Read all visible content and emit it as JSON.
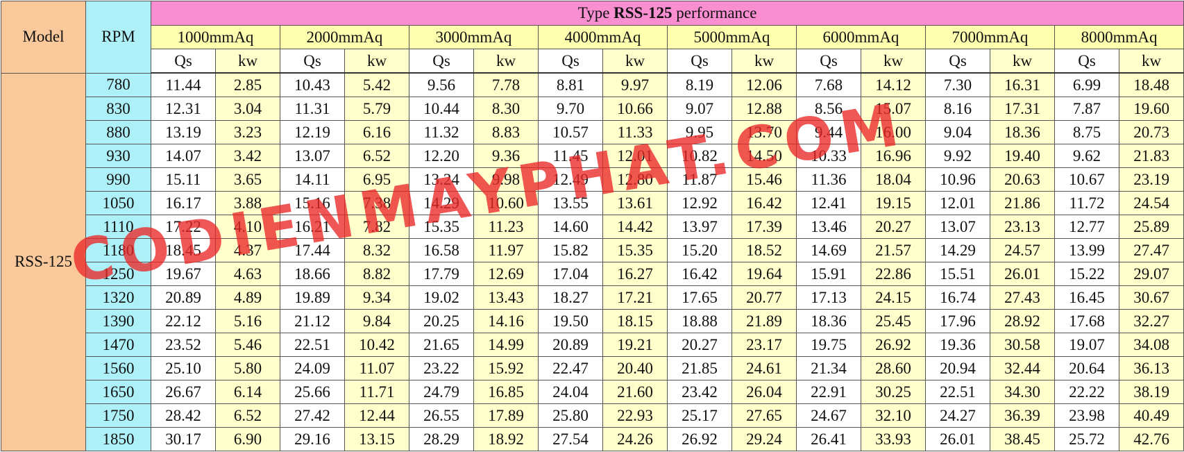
{
  "header": {
    "model_label": "Model",
    "rpm_label": "RPM",
    "title_prefix": "Type",
    "title_model": "RSS-125",
    "title_suffix": "performance",
    "pressures": [
      "1000mmAq",
      "2000mmAq",
      "3000mmAq",
      "4000mmAq",
      "5000mmAq",
      "6000mmAq",
      "7000mmAq",
      "8000mmAq"
    ],
    "sub_headers": [
      "Qs",
      "kw"
    ]
  },
  "table": {
    "model": "RSS-125",
    "rows": [
      [
        "780",
        "11.44",
        "2.85",
        "10.43",
        "5.42",
        "9.56",
        "7.78",
        "8.81",
        "9.97",
        "8.19",
        "12.06",
        "7.68",
        "14.12",
        "7.30",
        "16.31",
        "6.99",
        "18.48"
      ],
      [
        "830",
        "12.31",
        "3.04",
        "11.31",
        "5.79",
        "10.44",
        "8.30",
        "9.70",
        "10.66",
        "9.07",
        "12.88",
        "8.56",
        "15.07",
        "8.16",
        "17.31",
        "7.87",
        "19.60"
      ],
      [
        "880",
        "13.19",
        "3.23",
        "12.19",
        "6.16",
        "11.32",
        "8.83",
        "10.57",
        "11.33",
        "9.95",
        "13.70",
        "9.44",
        "16.00",
        "9.04",
        "18.36",
        "8.75",
        "20.73"
      ],
      [
        "930",
        "14.07",
        "3.42",
        "13.07",
        "6.52",
        "12.20",
        "9.36",
        "11.45",
        "12.01",
        "10.82",
        "14.50",
        "10.33",
        "16.96",
        "9.92",
        "19.40",
        "9.62",
        "21.83"
      ],
      [
        "990",
        "15.11",
        "3.65",
        "14.11",
        "6.95",
        "13.24",
        "9.98",
        "12.49",
        "12.80",
        "11.87",
        "15.46",
        "11.36",
        "18.04",
        "10.96",
        "20.63",
        "10.67",
        "23.19"
      ],
      [
        "1050",
        "16.17",
        "3.88",
        "15.16",
        "7.38",
        "14.29",
        "10.60",
        "13.55",
        "13.61",
        "12.92",
        "16.42",
        "12.41",
        "19.15",
        "12.01",
        "21.86",
        "11.72",
        "24.54"
      ],
      [
        "1110",
        "17.22",
        "4.10",
        "16.21",
        "7.82",
        "15.35",
        "11.23",
        "14.60",
        "14.42",
        "13.97",
        "17.39",
        "13.46",
        "20.27",
        "13.07",
        "23.13",
        "12.77",
        "25.89"
      ],
      [
        "1180",
        "18.45",
        "4.37",
        "17.44",
        "8.32",
        "16.58",
        "11.97",
        "15.82",
        "15.35",
        "15.20",
        "18.52",
        "14.69",
        "21.57",
        "14.29",
        "24.57",
        "13.99",
        "27.47"
      ],
      [
        "1250",
        "19.67",
        "4.63",
        "18.66",
        "8.82",
        "17.79",
        "12.69",
        "17.04",
        "16.27",
        "16.42",
        "19.64",
        "15.91",
        "22.86",
        "15.51",
        "26.01",
        "15.22",
        "29.07"
      ],
      [
        "1320",
        "20.89",
        "4.89",
        "19.89",
        "9.34",
        "19.02",
        "13.43",
        "18.27",
        "17.21",
        "17.65",
        "20.77",
        "17.13",
        "24.15",
        "16.74",
        "27.43",
        "16.45",
        "30.67"
      ],
      [
        "1390",
        "22.12",
        "5.16",
        "21.12",
        "9.84",
        "20.25",
        "14.16",
        "19.50",
        "18.15",
        "18.88",
        "21.89",
        "18.36",
        "25.45",
        "17.96",
        "28.92",
        "17.68",
        "32.27"
      ],
      [
        "1470",
        "23.52",
        "5.46",
        "22.51",
        "10.42",
        "21.65",
        "14.99",
        "20.89",
        "19.21",
        "20.27",
        "23.17",
        "19.75",
        "26.92",
        "19.36",
        "30.58",
        "19.07",
        "34.08"
      ],
      [
        "1560",
        "25.10",
        "5.80",
        "24.09",
        "11.07",
        "23.22",
        "15.92",
        "22.47",
        "20.40",
        "21.85",
        "24.61",
        "21.34",
        "28.60",
        "20.94",
        "32.44",
        "20.64",
        "36.13"
      ],
      [
        "1650",
        "26.67",
        "6.14",
        "25.66",
        "11.71",
        "24.79",
        "16.85",
        "24.04",
        "21.60",
        "23.42",
        "26.04",
        "22.91",
        "30.25",
        "22.51",
        "34.30",
        "22.22",
        "38.19"
      ],
      [
        "1750",
        "28.42",
        "6.52",
        "27.42",
        "12.44",
        "26.55",
        "17.89",
        "25.80",
        "22.93",
        "25.17",
        "27.65",
        "24.67",
        "32.10",
        "24.27",
        "36.39",
        "23.98",
        "40.49"
      ],
      [
        "1850",
        "30.17",
        "6.90",
        "29.16",
        "13.15",
        "28.29",
        "18.92",
        "27.54",
        "24.26",
        "26.92",
        "29.24",
        "26.41",
        "33.93",
        "26.01",
        "38.45",
        "25.72",
        "42.76"
      ]
    ]
  },
  "watermark": "CODIENMAYPHAT.COM"
}
